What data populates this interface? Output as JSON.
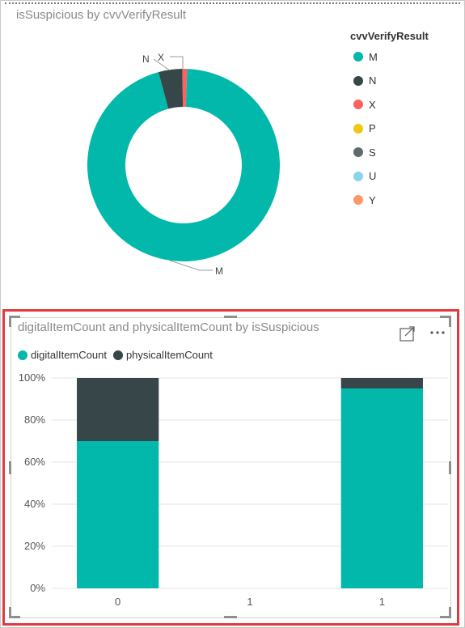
{
  "chart_data": [
    {
      "type": "pie",
      "title": "isSuspicious by cvvVerifyResult",
      "legend_title": "cvvVerifyResult",
      "legend_position": "right",
      "slices": [
        {
          "label": "M",
          "value": 95.2,
          "color": "#01B8AA"
        },
        {
          "label": "N",
          "value": 4.0,
          "color": "#374649"
        },
        {
          "label": "X",
          "value": 0.8,
          "color": "#FD625E"
        }
      ],
      "legend": [
        {
          "label": "M",
          "color": "#01B8AA"
        },
        {
          "label": "N",
          "color": "#374649"
        },
        {
          "label": "X",
          "color": "#FD625E"
        },
        {
          "label": "P",
          "color": "#F2C80F"
        },
        {
          "label": "S",
          "color": "#5F6B6D"
        },
        {
          "label": "U",
          "color": "#8AD4EB"
        },
        {
          "label": "Y",
          "color": "#FE9666"
        }
      ]
    },
    {
      "type": "bar",
      "stacked": "100%",
      "title": "digitalItemCount and physicalItemCount by isSuspicious",
      "legend_position": "top-left",
      "categories": [
        "0",
        "1",
        "1"
      ],
      "series": [
        {
          "name": "digitalItemCount",
          "color": "#01B8AA",
          "values": [
            70,
            0,
            95
          ]
        },
        {
          "name": "physicalItemCount",
          "color": "#374649",
          "values": [
            30,
            0,
            5
          ]
        }
      ],
      "y_ticks": [
        "0%",
        "20%",
        "40%",
        "60%",
        "80%",
        "100%"
      ],
      "ylim": [
        0,
        100
      ],
      "grid": true
    }
  ]
}
